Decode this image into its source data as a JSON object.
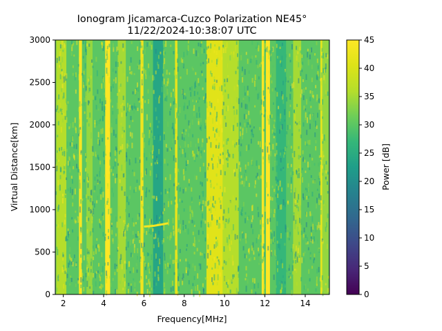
{
  "chart_data": {
    "type": "heatmap",
    "title": "Ionogram Jicamarca-Cuzco Polarization NE45°",
    "subtitle": "11/22/2024-10:38:07 UTC",
    "xlabel": "Frequency[MHz]",
    "ylabel": "Virtual Distance[km]",
    "xlim": [
      1.6,
      15.2
    ],
    "ylim": [
      0,
      3000
    ],
    "xticks": [
      2,
      4,
      6,
      8,
      10,
      12,
      14
    ],
    "xtick_labels": [
      "2",
      "4",
      "6",
      "8",
      "10",
      "12",
      "14"
    ],
    "yticks": [
      0,
      500,
      1000,
      1500,
      2000,
      2500,
      3000
    ],
    "ytick_labels": [
      "0",
      "500",
      "1000",
      "1500",
      "2000",
      "2500",
      "3000"
    ],
    "colorbar": {
      "label": "Power [dB]",
      "colormap": "viridis",
      "range": [
        0,
        45
      ],
      "ticks": [
        0,
        5,
        10,
        15,
        20,
        25,
        30,
        35,
        40,
        45
      ],
      "tick_labels": [
        "0",
        "5",
        "10",
        "15",
        "20",
        "25",
        "30",
        "35",
        "40",
        "45"
      ]
    },
    "background_power_db": 30,
    "frequency_bands": [
      {
        "freq_mhz": 1.9,
        "width_mhz": 0.5,
        "power_db": 36
      },
      {
        "freq_mhz": 2.85,
        "width_mhz": 0.15,
        "power_db": 44
      },
      {
        "freq_mhz": 3.3,
        "width_mhz": 0.3,
        "power_db": 34
      },
      {
        "freq_mhz": 4.2,
        "width_mhz": 0.25,
        "power_db": 45
      },
      {
        "freq_mhz": 4.9,
        "width_mhz": 0.4,
        "power_db": 35
      },
      {
        "freq_mhz": 5.9,
        "width_mhz": 0.15,
        "power_db": 43
      },
      {
        "freq_mhz": 6.7,
        "width_mhz": 0.5,
        "power_db": 24
      },
      {
        "freq_mhz": 7.6,
        "width_mhz": 0.12,
        "power_db": 42
      },
      {
        "freq_mhz": 9.6,
        "width_mhz": 1.0,
        "power_db": 41
      },
      {
        "freq_mhz": 10.3,
        "width_mhz": 0.8,
        "power_db": 36
      },
      {
        "freq_mhz": 11.9,
        "width_mhz": 0.12,
        "power_db": 45
      },
      {
        "freq_mhz": 12.15,
        "width_mhz": 0.2,
        "power_db": 45
      },
      {
        "freq_mhz": 12.8,
        "width_mhz": 0.5,
        "power_db": 27
      },
      {
        "freq_mhz": 13.6,
        "width_mhz": 0.4,
        "power_db": 35
      },
      {
        "freq_mhz": 14.8,
        "width_mhz": 0.1,
        "power_db": 42
      },
      {
        "freq_mhz": 15.0,
        "width_mhz": 0.3,
        "power_db": 34
      }
    ],
    "traces": [
      {
        "name": "echo-trace",
        "x_mhz": [
          6.0,
          6.5,
          7.0,
          7.2
        ],
        "y_km": [
          800,
          810,
          830,
          840
        ],
        "power_db": 44
      }
    ]
  }
}
